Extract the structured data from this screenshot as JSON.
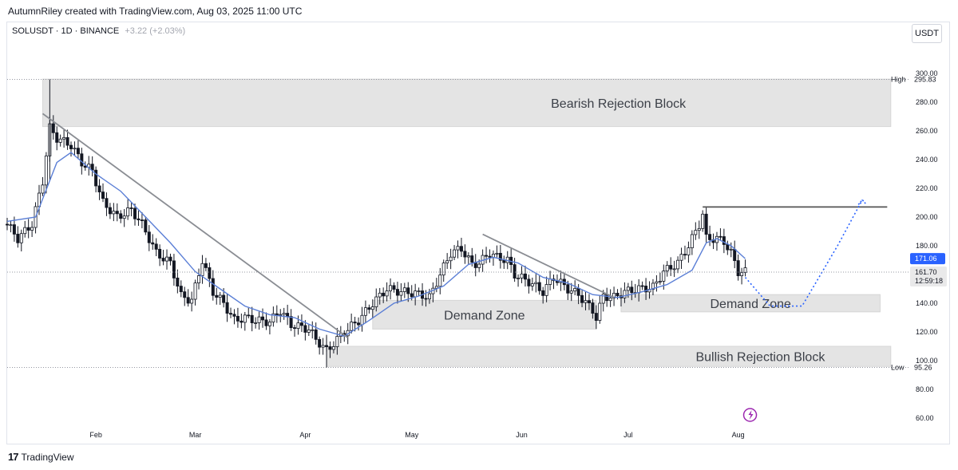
{
  "header": {
    "author_line": "AutumnRiley created with TradingView.com, Aug 03, 2025 11:00 UTC"
  },
  "symbol": {
    "name": "SOLUSDT · 1D · BINANCE",
    "change": "+3.22 (+2.03%)"
  },
  "currency_button": "USDT",
  "footer": {
    "brand": "TradingView",
    "logo_glyph": "17"
  },
  "colors": {
    "candle": "#131722",
    "ema": "#5b7fd6",
    "trendline": "#8a8d93",
    "zone_fill": "#e4e4e4",
    "dotted_projection": "#2962ff",
    "ema_tag": "#2962ff",
    "price_tag": "#787b86"
  },
  "chart_data": {
    "type": "candlestick",
    "ylim": [
      50,
      310
    ],
    "y_ticks": [
      "60.00",
      "80.00",
      "100.00",
      "120.00",
      "140.00",
      "160.00",
      "180.00",
      "200.00",
      "220.00",
      "240.00",
      "260.00",
      "280.00",
      "300.00"
    ],
    "x_ticks": [
      "Feb",
      "Mar",
      "Apr",
      "May",
      "Jun",
      "Jul",
      "Aug"
    ],
    "x_tick_dates": [
      "2025-02-01",
      "2025-03-01",
      "2025-04-01",
      "2025-05-01",
      "2025-06-01",
      "2025-07-01",
      "2025-08-01"
    ],
    "x_range": [
      "2025-01-07",
      "2025-09-18"
    ],
    "close_path": [
      [
        "2025-01-07",
        195
      ],
      [
        "2025-01-10",
        185
      ],
      [
        "2025-01-14",
        195
      ],
      [
        "2025-01-17",
        225
      ],
      [
        "2025-01-19",
        262
      ],
      [
        "2025-01-21",
        255
      ],
      [
        "2025-01-25",
        250
      ],
      [
        "2025-01-28",
        238
      ],
      [
        "2025-01-31",
        232
      ],
      [
        "2025-02-03",
        210
      ],
      [
        "2025-02-07",
        200
      ],
      [
        "2025-02-11",
        205
      ],
      [
        "2025-02-14",
        195
      ],
      [
        "2025-02-18",
        175
      ],
      [
        "2025-02-22",
        168
      ],
      [
        "2025-02-25",
        145
      ],
      [
        "2025-02-28",
        142
      ],
      [
        "2025-03-03",
        170
      ],
      [
        "2025-03-06",
        148
      ],
      [
        "2025-03-09",
        140
      ],
      [
        "2025-03-12",
        128
      ],
      [
        "2025-03-15",
        130
      ],
      [
        "2025-03-18",
        128
      ],
      [
        "2025-03-22",
        127
      ],
      [
        "2025-03-25",
        135
      ],
      [
        "2025-03-28",
        125
      ],
      [
        "2025-04-02",
        122
      ],
      [
        "2025-04-04",
        115
      ],
      [
        "2025-04-07",
        107
      ],
      [
        "2025-04-09",
        112
      ],
      [
        "2025-04-12",
        120
      ],
      [
        "2025-04-16",
        128
      ],
      [
        "2025-04-20",
        140
      ],
      [
        "2025-04-24",
        150
      ],
      [
        "2025-04-28",
        148
      ],
      [
        "2025-05-02",
        147
      ],
      [
        "2025-05-06",
        144
      ],
      [
        "2025-05-09",
        160
      ],
      [
        "2025-05-12",
        175
      ],
      [
        "2025-05-15",
        178
      ],
      [
        "2025-05-18",
        167
      ],
      [
        "2025-05-20",
        168
      ],
      [
        "2025-05-23",
        175
      ],
      [
        "2025-05-25",
        172
      ],
      [
        "2025-05-28",
        170
      ],
      [
        "2025-05-30",
        160
      ],
      [
        "2025-06-03",
        155
      ],
      [
        "2025-06-07",
        148
      ],
      [
        "2025-06-10",
        158
      ],
      [
        "2025-06-14",
        150
      ],
      [
        "2025-06-17",
        146
      ],
      [
        "2025-06-21",
        135
      ],
      [
        "2025-06-22",
        130
      ],
      [
        "2025-06-24",
        145
      ],
      [
        "2025-06-27",
        144
      ],
      [
        "2025-06-30",
        148
      ],
      [
        "2025-07-04",
        150
      ],
      [
        "2025-07-08",
        151
      ],
      [
        "2025-07-11",
        162
      ],
      [
        "2025-07-15",
        168
      ],
      [
        "2025-07-18",
        180
      ],
      [
        "2025-07-21",
        195
      ],
      [
        "2025-07-22",
        202
      ],
      [
        "2025-07-23",
        185
      ],
      [
        "2025-07-26",
        185
      ],
      [
        "2025-07-28",
        183
      ],
      [
        "2025-07-30",
        175
      ],
      [
        "2025-08-01",
        162
      ],
      [
        "2025-08-03",
        161.7
      ]
    ],
    "ema": [
      [
        "2025-01-07",
        197
      ],
      [
        "2025-01-15",
        200
      ],
      [
        "2025-01-21",
        238
      ],
      [
        "2025-01-25",
        245
      ],
      [
        "2025-02-01",
        230
      ],
      [
        "2025-02-08",
        218
      ],
      [
        "2025-02-15",
        200
      ],
      [
        "2025-02-22",
        182
      ],
      [
        "2025-03-01",
        162
      ],
      [
        "2025-03-08",
        150
      ],
      [
        "2025-03-15",
        138
      ],
      [
        "2025-03-22",
        132
      ],
      [
        "2025-03-29",
        130
      ],
      [
        "2025-04-05",
        122
      ],
      [
        "2025-04-12",
        117
      ],
      [
        "2025-04-19",
        128
      ],
      [
        "2025-04-26",
        140
      ],
      [
        "2025-05-03",
        145
      ],
      [
        "2025-05-10",
        152
      ],
      [
        "2025-05-17",
        167
      ],
      [
        "2025-05-24",
        172
      ],
      [
        "2025-05-31",
        168
      ],
      [
        "2025-06-07",
        158
      ],
      [
        "2025-06-14",
        154
      ],
      [
        "2025-06-21",
        146
      ],
      [
        "2025-06-28",
        144
      ],
      [
        "2025-07-05",
        148
      ],
      [
        "2025-07-12",
        153
      ],
      [
        "2025-07-19",
        163
      ],
      [
        "2025-07-23",
        182
      ],
      [
        "2025-07-26",
        185
      ],
      [
        "2025-07-30",
        180
      ],
      [
        "2025-08-03",
        171.06
      ]
    ],
    "trendlines": [
      {
        "from": [
          "2025-01-17",
          272
        ],
        "to": [
          "2025-04-13",
          116
        ]
      },
      {
        "from": [
          "2025-05-21",
          188
        ],
        "to": [
          "2025-06-27",
          144
        ]
      },
      {
        "from": [
          "2025-07-22",
          207
        ],
        "to": [
          "2025-09-12",
          207
        ]
      }
    ],
    "zones": [
      {
        "label": "Bearish Rejection Block",
        "y_top": 296,
        "y_bottom": 263,
        "x_start": "2025-01-17",
        "x_end": "2025-09-13"
      },
      {
        "label": "Demand Zone",
        "y_top": 142,
        "y_bottom": 122,
        "x_start": "2025-04-20",
        "x_end": "2025-06-22"
      },
      {
        "label": "Demand Zone",
        "y_top": 146,
        "y_bottom": 134,
        "x_start": "2025-06-29",
        "x_end": "2025-09-10"
      },
      {
        "label": "Bullish Rejection Block",
        "y_top": 110,
        "y_bottom": 96,
        "x_start": "2025-04-07",
        "x_end": "2025-09-13"
      }
    ],
    "projection": [
      [
        "2025-08-03",
        158
      ],
      [
        "2025-08-10",
        138
      ],
      [
        "2025-08-19",
        138
      ],
      [
        "2025-08-29",
        180
      ],
      [
        "2025-09-05",
        212
      ]
    ],
    "high_label": {
      "label": "High",
      "value": "295.83",
      "y": 295.83
    },
    "low_label": {
      "label": "Low",
      "value": "95.26",
      "y": 95.26
    },
    "price_tags": [
      {
        "value": "171.06",
        "y": 171.06,
        "kind": "ema"
      },
      {
        "value": "161.70",
        "y": 161.7,
        "countdown": "12:59:18",
        "kind": "price"
      }
    ]
  }
}
